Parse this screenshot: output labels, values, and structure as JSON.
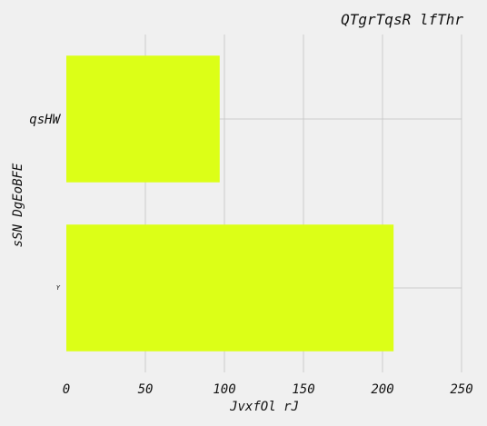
{
  "chart_data": {
    "type": "bar",
    "orientation": "horizontal",
    "title": "QTgrTqsR lfThr",
    "xlabel": "JvxfOl rJ",
    "ylabel": "sSN DgEoBFE",
    "categories": [
      "Y",
      "qsHW"
    ],
    "values": [
      207,
      97
    ],
    "xlim": [
      0,
      250
    ],
    "xticks": [
      "0",
      "50",
      "100",
      "150",
      "200",
      "250"
    ],
    "grid": true,
    "bar_color": "#dcff17"
  }
}
